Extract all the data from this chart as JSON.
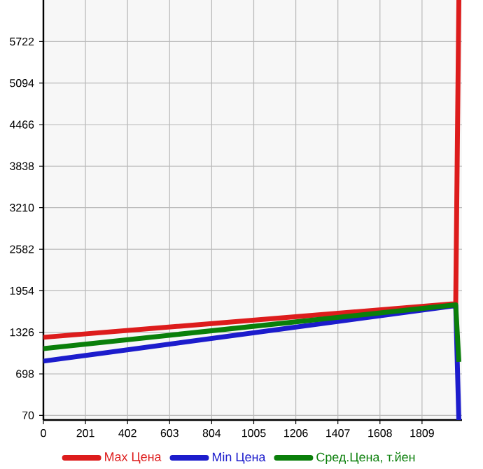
{
  "chart_data": {
    "type": "line",
    "x": [
      0,
      1970,
      1985
    ],
    "series": [
      {
        "name": "Max Цена",
        "color": "#dd1c1c",
        "values": [
          1250,
          1760,
          6350
        ]
      },
      {
        "name": "Min Цена",
        "color": "#1c1ccc",
        "values": [
          890,
          1730,
          0
        ]
      },
      {
        "name": "Сред.Цена, т.йен",
        "color": "#0a7f0a",
        "values": [
          1080,
          1740,
          880
        ]
      }
    ],
    "xlim": [
      0,
      2000
    ],
    "ylim": [
      0,
      6350
    ],
    "xticks": [
      0,
      201,
      402,
      603,
      804,
      1005,
      1206,
      1407,
      1608,
      1809
    ],
    "yticks": [
      70,
      698,
      1326,
      1954,
      2582,
      3210,
      3838,
      4466,
      5094,
      5722
    ],
    "grid": true,
    "legend": "bottom",
    "marker": "none",
    "line_style": "solid"
  }
}
